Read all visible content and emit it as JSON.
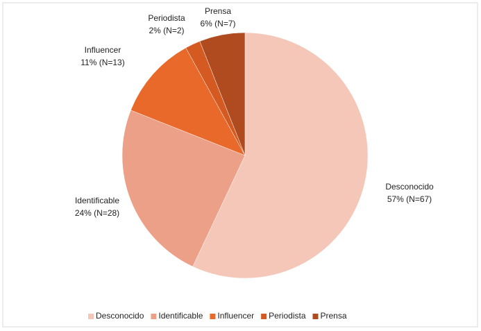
{
  "chart_data": {
    "type": "pie",
    "categories": [
      "Desconocido",
      "Identificable",
      "Influencer",
      "Periodista",
      "Prensa"
    ],
    "values": [
      57,
      24,
      11,
      2,
      6
    ],
    "value_labels": [
      "57% (N=67)",
      "24% (N=28)",
      "11% (N=13)",
      "2% (N=2)",
      "6% (N=7)"
    ],
    "colors": [
      "#f4c7b8",
      "#eda088",
      "#e8692a",
      "#d45a22",
      "#b04b1f"
    ],
    "legend": "bottom"
  }
}
